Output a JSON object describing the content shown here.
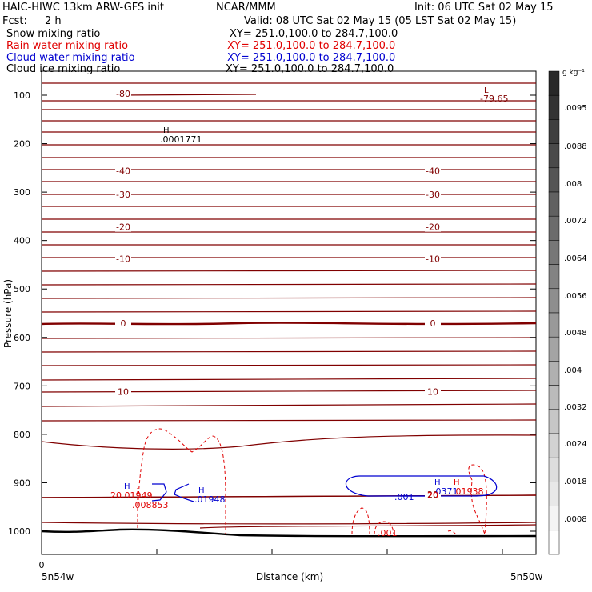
{
  "header": {
    "title_left": "HAIC-HIWC 13km ARW-GFS init",
    "center": "NCAR/MMM",
    "init": "Init: 06 UTC Sat 02 May 15",
    "fcst_label": "Fcst:",
    "fcst_value": "2 h",
    "valid": "Valid: 08 UTC Sat 02 May 15 (05 LST Sat 02 May 15)"
  },
  "fields": [
    {
      "name": "Snow mixing ratio",
      "xy": "XY= 251.0,100.0 to 284.7,100.0",
      "color": "#000000"
    },
    {
      "name": "Rain water mixing ratio",
      "xy": "XY= 251.0,100.0 to 284.7,100.0",
      "color": "#e00000"
    },
    {
      "name": "Cloud water mixing ratio",
      "xy": "XY= 251.0,100.0 to 284.7,100.0",
      "color": "#0000d0"
    },
    {
      "name": "Cloud ice mixing ratio",
      "xy": "XY= 251.0,100.0 to 284.7,100.0",
      "color": "#000000"
    }
  ],
  "colorbar": {
    "unit": "g kg⁻¹",
    "labels": [
      ".0095",
      ".0088",
      ".008",
      ".0072",
      ".0064",
      ".0056",
      ".0048",
      ".004",
      ".0032",
      ".0024",
      ".0018",
      ".0008"
    ]
  },
  "chart_data": {
    "type": "cross-section contour",
    "ylabel": "Pressure (hPa)",
    "xlabel": "Distance (km)",
    "y_ticks": [
      "100",
      "200",
      "300",
      "400",
      "500",
      "600",
      "700",
      "800",
      "900",
      "1000"
    ],
    "x_tick_label": "0",
    "x_left_label": "5n54w",
    "x_right_label": "5n50w",
    "ylim": [
      1050,
      75
    ],
    "temperature_contours": {
      "color": "#800000",
      "labels": [
        {
          "text": "-80",
          "p": 97,
          "pos": "left"
        },
        {
          "text": "-40",
          "p": 256,
          "pos": "left"
        },
        {
          "text": "-40",
          "p": 256,
          "pos": "right"
        },
        {
          "text": "-30",
          "p": 305,
          "pos": "left"
        },
        {
          "text": "-30",
          "p": 305,
          "pos": "right"
        },
        {
          "text": "-20",
          "p": 372,
          "pos": "left"
        },
        {
          "text": "-20",
          "p": 372,
          "pos": "right"
        },
        {
          "text": "-10",
          "p": 438,
          "pos": "left"
        },
        {
          "text": "-10",
          "p": 438,
          "pos": "right"
        },
        {
          "text": "0",
          "p": 571,
          "pos": "left"
        },
        {
          "text": "0",
          "p": 571,
          "pos": "right"
        },
        {
          "text": "10",
          "p": 712,
          "pos": "left"
        },
        {
          "text": "10",
          "p": 712,
          "pos": "right"
        },
        {
          "text": "20",
          "p": 924,
          "pos": "right"
        }
      ],
      "low_label": "L",
      "low_value": "-79.65"
    },
    "annotations": [
      {
        "text": "H",
        "color": "#000000"
      },
      {
        "text": ".0001771",
        "color": "#000000"
      },
      {
        "text": "H",
        "color": "#0000d0"
      },
      {
        "text": "20.01949",
        "color": "#e00000"
      },
      {
        "text": ".008853",
        "color": "#e00000"
      },
      {
        "text": "H",
        "color": "#0000d0"
      },
      {
        "text": ".01948",
        "color": "#0000d0"
      },
      {
        "text": "H",
        "color": "#0000d0"
      },
      {
        "text": ".0371",
        "color": "#0000d0"
      },
      {
        "text": "H",
        "color": "#e00000"
      },
      {
        "text": ".01938",
        "color": "#e00000"
      },
      {
        "text": ".001",
        "color": "#0000d0"
      },
      {
        "text": ".001",
        "color": "#e00000"
      },
      {
        "text": "20",
        "color": "#e00000"
      }
    ]
  }
}
